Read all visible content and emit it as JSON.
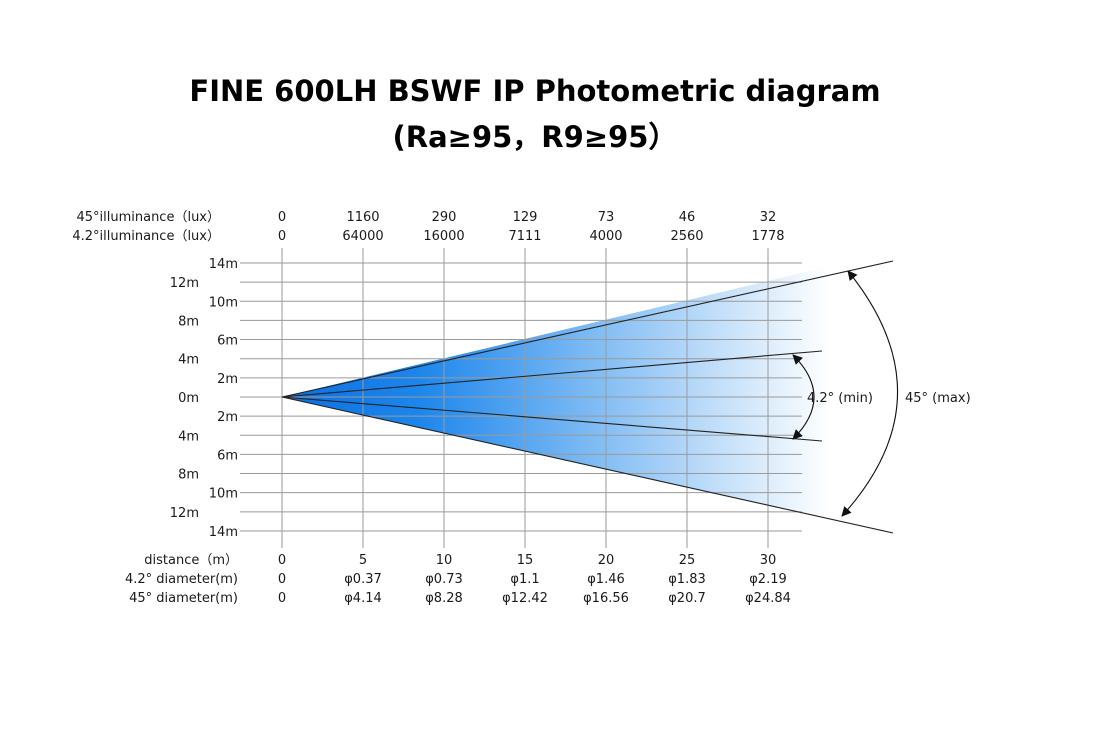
{
  "title": {
    "line1": "FINE 600LH  BSWF IP Photometric diagram",
    "line2": "(Ra≥95，R9≥95）"
  },
  "rows": {
    "illum45_label": "45°illuminance（lux）",
    "illum42_label": "4.2°illuminance（lux）",
    "distance_label": "distance（m）",
    "diam42_label": "4.2° diameter(m)",
    "diam45_label": "45° diameter(m)"
  },
  "columns": [
    {
      "distance": "0",
      "illum45": "0",
      "illum42": "0",
      "diam42": "0",
      "diam45": "0"
    },
    {
      "distance": "5",
      "illum45": "1160",
      "illum42": "64000",
      "diam42": "φ0.37",
      "diam45": "φ4.14"
    },
    {
      "distance": "10",
      "illum45": "290",
      "illum42": "16000",
      "diam42": "φ0.73",
      "diam45": "φ8.28"
    },
    {
      "distance": "15",
      "illum45": "129",
      "illum42": "7111",
      "diam42": "φ1.1",
      "diam45": "φ12.42"
    },
    {
      "distance": "20",
      "illum45": "73",
      "illum42": "4000",
      "diam42": "φ1.46",
      "diam45": "φ16.56"
    },
    {
      "distance": "25",
      "illum45": "46",
      "illum42": "2560",
      "diam42": "φ1.83",
      "diam45": "φ20.7"
    },
    {
      "distance": "30",
      "illum45": "32",
      "illum42": "1778",
      "diam42": "φ2.19",
      "diam45": "φ24.84"
    }
  ],
  "y_axis_labels": [
    "14m",
    "12m",
    "10m",
    "8m",
    "6m",
    "4m",
    "2m",
    "0m",
    "2m",
    "4m",
    "6m",
    "8m",
    "10m",
    "12m",
    "14m"
  ],
  "angles": {
    "narrow": "4.2° (min)",
    "wide": "45°  (max)",
    "narrow_deg": 4.2,
    "wide_deg": 45
  },
  "colors": {
    "beam_start": "#0a6fe0",
    "beam_end": "#ffffff",
    "grid": "#9a9a9a",
    "lines": "#222222"
  }
}
